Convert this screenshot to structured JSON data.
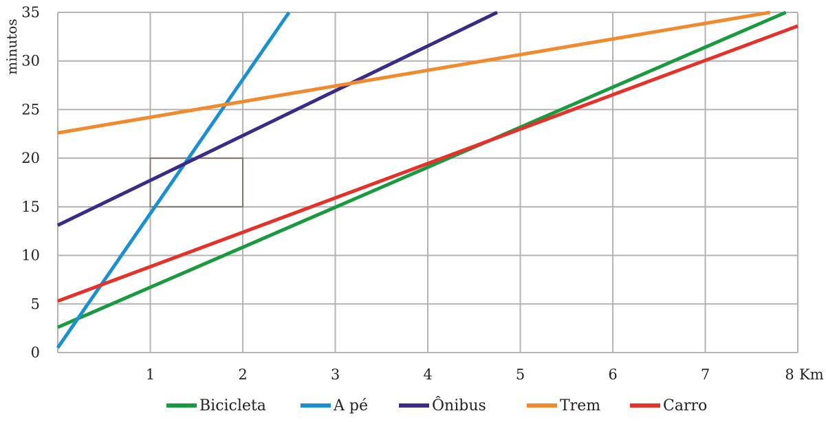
{
  "chart_data": {
    "type": "line",
    "title": "",
    "ylabel": "minutos",
    "x_unit_label": "Km",
    "xlim": [
      0,
      8
    ],
    "ylim": [
      0,
      35
    ],
    "x_ticks": [
      1,
      2,
      3,
      4,
      5,
      6,
      7,
      8
    ],
    "y_ticks": [
      0,
      5,
      10,
      15,
      20,
      25,
      30,
      35
    ],
    "grid": true,
    "legend_position": "bottom",
    "series": [
      {
        "name": "Bicicleta",
        "color": "#1a9a3f",
        "x": [
          0,
          7.87
        ],
        "y": [
          2.6,
          35
        ]
      },
      {
        "name": "A pé",
        "color": "#1b8fd0",
        "x": [
          0,
          2.5
        ],
        "y": [
          0.5,
          35
        ]
      },
      {
        "name": "Ônibus",
        "color": "#3a2b86",
        "x": [
          0,
          4.75
        ],
        "y": [
          13.1,
          35
        ]
      },
      {
        "name": "Trem",
        "color": "#f08a2f",
        "x": [
          0,
          7.7
        ],
        "y": [
          22.6,
          35
        ]
      },
      {
        "name": "Carro",
        "color": "#e4322b",
        "x": [
          0,
          8.0
        ],
        "y": [
          5.3,
          33.6
        ]
      }
    ],
    "highlight_box": {
      "x": [
        1,
        2
      ],
      "y": [
        15,
        20
      ],
      "color": "#7f7466"
    }
  }
}
